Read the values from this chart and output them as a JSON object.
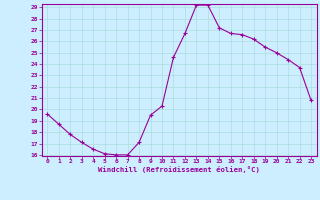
{
  "hours": [
    0,
    1,
    2,
    3,
    4,
    5,
    6,
    7,
    8,
    9,
    10,
    11,
    12,
    13,
    14,
    15,
    16,
    17,
    18,
    19,
    20,
    21,
    22,
    23
  ],
  "values": [
    19.6,
    18.7,
    17.8,
    17.1,
    16.5,
    16.1,
    16.0,
    16.0,
    17.1,
    19.5,
    20.3,
    24.6,
    26.7,
    29.2,
    29.2,
    27.2,
    26.7,
    26.6,
    26.2,
    25.5,
    25.0,
    24.4,
    23.7,
    20.8
  ],
  "line_color": "#990099",
  "marker": "+",
  "bg_color": "#cceeff",
  "grid_color": "#aadddd",
  "axis_label_color": "#990099",
  "xlabel": "Windchill (Refroidissement éolien,°C)",
  "ylim": [
    16,
    29
  ],
  "xlim": [
    -0.5,
    23.5
  ],
  "yticks": [
    16,
    17,
    18,
    19,
    20,
    21,
    22,
    23,
    24,
    25,
    26,
    27,
    28,
    29
  ],
  "xticks": [
    0,
    1,
    2,
    3,
    4,
    5,
    6,
    7,
    8,
    9,
    10,
    11,
    12,
    13,
    14,
    15,
    16,
    17,
    18,
    19,
    20,
    21,
    22,
    23
  ],
  "tick_color": "#990099",
  "spine_color": "#990099",
  "marker_size": 3,
  "line_width": 0.8
}
